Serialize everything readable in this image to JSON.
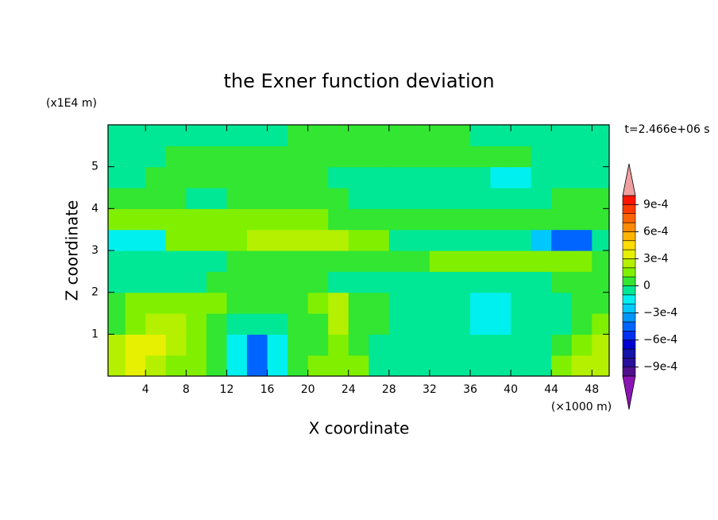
{
  "chart_data": {
    "type": "contour",
    "title": "the Exner function deviation",
    "xlabel": "X coordinate",
    "ylabel": "Z coordinate",
    "x_unit": "(×1000 m)",
    "y_unit": "(x1E4 m)",
    "annotation": "t=2.466e+06 s",
    "xlim": [
      0.3,
      49.7
    ],
    "ylim": [
      0,
      6
    ],
    "xticks": [
      4,
      8,
      12,
      16,
      20,
      24,
      28,
      32,
      36,
      40,
      44,
      48
    ],
    "yticks": [
      1,
      2,
      3,
      4,
      5
    ],
    "x": [
      1,
      3,
      5,
      7,
      9,
      11,
      13,
      15,
      17,
      19,
      21,
      23,
      25,
      27,
      29,
      31,
      33,
      35,
      37,
      39,
      41,
      43,
      45,
      47,
      49
    ],
    "y": [
      0.25,
      0.75,
      1.25,
      1.75,
      2.25,
      2.75,
      3.25,
      3.75,
      4.25,
      4.75,
      5.25,
      5.75
    ],
    "values": [
      [
        0.00025,
        0.00035,
        0.00025,
        0.00015,
        0.00015,
        5e-05,
        -0.00015,
        -0.00045,
        -0.00015,
        5e-05,
        0.00015,
        0.00015,
        0.00015,
        -5e-05,
        -5e-05,
        -5e-05,
        -5e-05,
        -5e-05,
        -5e-05,
        -5e-05,
        -5e-05,
        -5e-05,
        0.00015,
        0.00025,
        0.00025
      ],
      [
        0.00025,
        0.00035,
        0.00035,
        0.00025,
        0.00015,
        5e-05,
        -0.00015,
        -0.00045,
        -0.00015,
        5e-05,
        5e-05,
        0.00015,
        5e-05,
        -5e-05,
        -5e-05,
        -5e-05,
        -5e-05,
        -5e-05,
        -5e-05,
        -5e-05,
        -5e-05,
        -5e-05,
        5e-05,
        0.00015,
        0.00025
      ],
      [
        5e-05,
        0.00015,
        0.00025,
        0.00025,
        0.00015,
        5e-05,
        -5e-05,
        -5e-05,
        -5e-05,
        5e-05,
        5e-05,
        0.00025,
        5e-05,
        5e-05,
        -5e-05,
        -5e-05,
        -5e-05,
        -5e-05,
        -0.00015,
        -0.00015,
        -5e-05,
        -5e-05,
        -5e-05,
        5e-05,
        0.00015
      ],
      [
        5e-05,
        0.00015,
        0.00015,
        0.00015,
        0.00015,
        0.00015,
        5e-05,
        5e-05,
        5e-05,
        5e-05,
        0.00015,
        0.00025,
        5e-05,
        5e-05,
        -5e-05,
        -5e-05,
        -5e-05,
        -5e-05,
        -0.00015,
        -0.00015,
        -5e-05,
        -5e-05,
        -5e-05,
        5e-05,
        5e-05
      ],
      [
        -5e-05,
        -5e-05,
        -5e-05,
        -5e-05,
        -5e-05,
        5e-05,
        5e-05,
        5e-05,
        5e-05,
        5e-05,
        5e-05,
        -5e-05,
        -5e-05,
        -5e-05,
        -5e-05,
        -5e-05,
        -5e-05,
        -5e-05,
        -5e-05,
        -5e-05,
        -5e-05,
        -5e-05,
        5e-05,
        5e-05,
        5e-05
      ],
      [
        -5e-05,
        -5e-05,
        -5e-05,
        -5e-05,
        -5e-05,
        -5e-05,
        5e-05,
        5e-05,
        5e-05,
        5e-05,
        5e-05,
        5e-05,
        5e-05,
        5e-05,
        5e-05,
        5e-05,
        0.00015,
        0.00015,
        0.00015,
        0.00015,
        0.00015,
        0.00015,
        0.00015,
        0.00015,
        5e-05
      ],
      [
        -0.00015,
        -0.00015,
        -0.00015,
        0.00015,
        0.00015,
        0.00015,
        0.00015,
        0.00025,
        0.00025,
        0.00025,
        0.00025,
        0.00025,
        0.00015,
        0.00015,
        -5e-05,
        -5e-05,
        -5e-05,
        -5e-05,
        -5e-05,
        -5e-05,
        -5e-05,
        -0.00025,
        -0.00045,
        -0.00045,
        -5e-05
      ],
      [
        0.00015,
        0.00015,
        0.00015,
        0.00015,
        0.00015,
        0.00015,
        0.00015,
        0.00015,
        0.00015,
        0.00015,
        0.00015,
        5e-05,
        5e-05,
        5e-05,
        5e-05,
        5e-05,
        5e-05,
        5e-05,
        5e-05,
        5e-05,
        5e-05,
        5e-05,
        5e-05,
        5e-05,
        5e-05
      ],
      [
        5e-05,
        5e-05,
        5e-05,
        5e-05,
        -5e-05,
        -5e-05,
        5e-05,
        5e-05,
        5e-05,
        5e-05,
        5e-05,
        5e-05,
        -5e-05,
        -5e-05,
        -5e-05,
        -5e-05,
        -5e-05,
        -5e-05,
        -5e-05,
        -5e-05,
        -5e-05,
        -5e-05,
        5e-05,
        5e-05,
        5e-05
      ],
      [
        -5e-05,
        -5e-05,
        5e-05,
        5e-05,
        5e-05,
        5e-05,
        5e-05,
        5e-05,
        5e-05,
        5e-05,
        5e-05,
        -5e-05,
        -5e-05,
        -5e-05,
        -5e-05,
        -5e-05,
        -5e-05,
        -5e-05,
        -5e-05,
        -0.00015,
        -0.00015,
        -5e-05,
        -5e-05,
        -5e-05,
        -5e-05
      ],
      [
        -5e-05,
        -5e-05,
        -5e-05,
        5e-05,
        5e-05,
        5e-05,
        5e-05,
        5e-05,
        5e-05,
        5e-05,
        5e-05,
        5e-05,
        5e-05,
        5e-05,
        5e-05,
        5e-05,
        5e-05,
        5e-05,
        5e-05,
        5e-05,
        5e-05,
        -5e-05,
        -5e-05,
        -5e-05,
        -5e-05
      ],
      [
        -5e-05,
        -5e-05,
        -5e-05,
        -5e-05,
        -5e-05,
        -5e-05,
        -5e-05,
        -5e-05,
        -5e-05,
        5e-05,
        5e-05,
        5e-05,
        5e-05,
        5e-05,
        5e-05,
        5e-05,
        5e-05,
        5e-05,
        -5e-05,
        -5e-05,
        -5e-05,
        -5e-05,
        -5e-05,
        -5e-05,
        -5e-05
      ]
    ],
    "levels": [
      -0.001,
      -0.0009,
      -0.0008,
      -0.0007,
      -0.0006,
      -0.0005,
      -0.0004,
      -0.0003,
      -0.0002,
      -0.0001,
      0,
      0.0001,
      0.0002,
      0.0003,
      0.0004,
      0.0005,
      0.0006,
      0.0007,
      0.0008,
      0.0009,
      0.001
    ],
    "colors": [
      "#50108c",
      "#28109a",
      "#1414aa",
      "#0000d2",
      "#0030f0",
      "#0064ff",
      "#0096ff",
      "#00c8ff",
      "#00f0f0",
      "#00e896",
      "#32e632",
      "#80f000",
      "#b4f000",
      "#e6f000",
      "#ffdc00",
      "#ffb400",
      "#ff8c00",
      "#ff6400",
      "#ff3c00",
      "#ff1400"
    ],
    "under_color": "#8c14b4",
    "over_color": "#f0a0a0",
    "cticks": [
      {
        "value": 0.0009,
        "label": "9e-4"
      },
      {
        "value": 0.0006,
        "label": "6e-4"
      },
      {
        "value": 0.0003,
        "label": "3e-4"
      },
      {
        "value": 0,
        "label": "0"
      },
      {
        "value": -0.0003,
        "label": "−3e-4"
      },
      {
        "value": -0.0006,
        "label": "−6e-4"
      },
      {
        "value": -0.0009,
        "label": "−9e-4"
      }
    ]
  }
}
